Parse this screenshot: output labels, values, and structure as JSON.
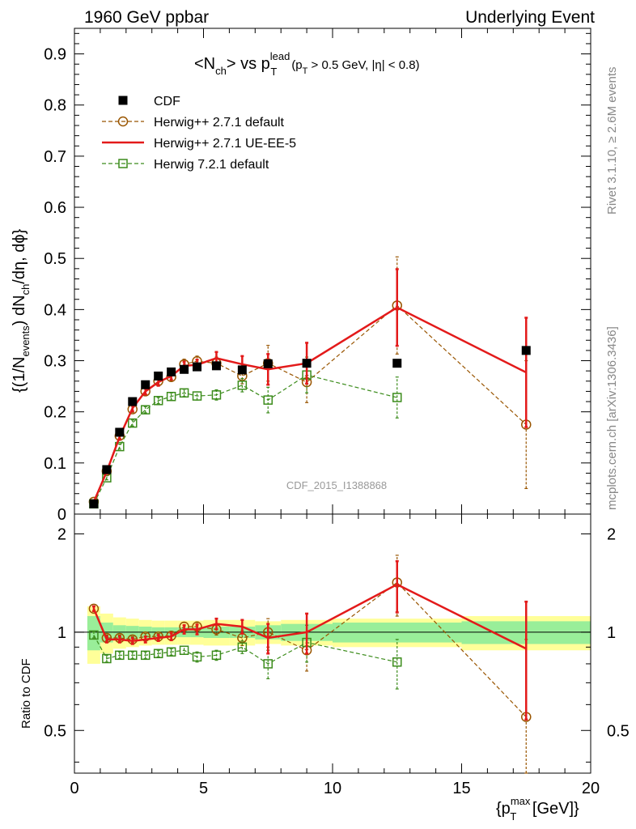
{
  "header": {
    "left": "1960 GeV ppbar",
    "right": "Underlying Event"
  },
  "side": {
    "rivet": "Rivet 3.1.10, ≥ 2.6M events",
    "mcplots": "mcplots.cern.ch [arXiv:1306.3436]"
  },
  "plot_title": {
    "main": "<N",
    "main_sub": "ch",
    "vs": "> vs p",
    "vs_sup": "lead",
    "vs_sub": "T",
    "cut_a": "(p",
    "cut_a_sub": "T",
    "cut_b": " > 0.5 GeV, |η| < 0.8)"
  },
  "watermark": "CDF_2015_I1388868",
  "ylabel_top": {
    "p1": "{(1/N",
    "p1_sub": "events",
    "p2": ") dN",
    "p2_sub": "ch",
    "p3": "/dη, dϕ}"
  },
  "ylabel_bottom": "Ratio to CDF",
  "xlabel": {
    "main": "{p",
    "sup": "max",
    "sub": "T",
    "tail": " [GeV]}"
  },
  "legend": [
    {
      "name": "CDF",
      "color": "#000000",
      "marker": "square-filled",
      "line": "none"
    },
    {
      "name": "Herwig++ 2.7.1 default",
      "color": "#995500",
      "marker": "circle-open",
      "line": "dashed"
    },
    {
      "name": "Herwig++ 2.7.1 UE-EE-5",
      "color": "#e31a1a",
      "marker": "none",
      "line": "solid"
    },
    {
      "name": "Herwig 7.2.1 default",
      "color": "#3c8c1c",
      "marker": "square-open",
      "line": "dashed"
    }
  ],
  "chart_data": {
    "type": "line",
    "title": "<Nch> vs pT lead (pT > 0.5 GeV, |η| < 0.8)",
    "xlabel": "{pT max [GeV]}",
    "ylabel": "{(1/Nevents) dNch/dη, dϕ}",
    "xlim": [
      0,
      20
    ],
    "ylim": [
      0,
      0.95
    ],
    "x_ticks": [
      0,
      5,
      10,
      15,
      20
    ],
    "y_ticks": [
      0,
      0.1,
      0.2,
      0.3,
      0.4,
      0.5,
      0.6,
      0.7,
      0.8,
      0.9
    ],
    "x_tick_labels": [
      "0",
      "5",
      "10",
      "15",
      "20"
    ],
    "y_tick_labels": [
      "0",
      "0.1",
      "0.2",
      "0.3",
      "0.4",
      "0.5",
      "0.6",
      "0.7",
      "0.8",
      "0.9"
    ],
    "ratio_ylim": [
      0.37,
      2.3
    ],
    "ratio_ticks": [
      0.5,
      1,
      2
    ],
    "ratio_tick_labels": [
      "0.5",
      "1",
      "2"
    ],
    "x": [
      0.75,
      1.25,
      1.75,
      2.25,
      2.75,
      3.25,
      3.75,
      4.25,
      4.75,
      5.5,
      6.5,
      7.5,
      9.0,
      12.5,
      17.5
    ],
    "x_bin_edges": [
      0.5,
      1.0,
      1.5,
      2.0,
      2.5,
      3.0,
      3.5,
      4.0,
      4.5,
      5.0,
      6.0,
      7.0,
      8.0,
      10.0,
      15.0,
      20.0
    ],
    "series": [
      {
        "name": "CDF",
        "values": [
          0.02,
          0.087,
          0.16,
          0.22,
          0.253,
          0.27,
          0.278,
          0.283,
          0.288,
          0.29,
          0.282,
          0.294,
          0.295,
          0.295,
          0.32
        ],
        "rel_stat_err": [
          0.12,
          0.07,
          0.05,
          0.045,
          0.04,
          0.035,
          0.035,
          0.035,
          0.035,
          0.04,
          0.04,
          0.05,
          0.06,
          0.07,
          0.08
        ],
        "rel_total_err": [
          0.2,
          0.14,
          0.11,
          0.1,
          0.09,
          0.085,
          0.085,
          0.085,
          0.085,
          0.09,
          0.09,
          0.08,
          0.09,
          0.1,
          0.12
        ]
      },
      {
        "name": "Herwig++ 2.7.1 default",
        "values": [
          0.024,
          0.084,
          0.153,
          0.205,
          0.24,
          0.26,
          0.268,
          0.293,
          0.299,
          0.295,
          0.27,
          0.295,
          0.258,
          0.408,
          0.175
        ],
        "errors": [
          0.003,
          0.004,
          0.005,
          0.006,
          0.006,
          0.007,
          0.007,
          0.01,
          0.01,
          0.012,
          0.015,
          0.035,
          0.04,
          0.095,
          0.125
        ],
        "ratio": [
          1.18,
          0.96,
          0.96,
          0.95,
          0.97,
          0.97,
          0.975,
          1.04,
          1.04,
          1.02,
          0.96,
          1.0,
          0.88,
          1.42,
          0.55
        ],
        "ratio_err": [
          0.02,
          0.02,
          0.02,
          0.02,
          0.02,
          0.02,
          0.025,
          0.03,
          0.035,
          0.04,
          0.05,
          0.1,
          0.12,
          0.3,
          0.4
        ]
      },
      {
        "name": "Herwig++ 2.7.1 UE-EE-5",
        "values": [
          0.024,
          0.083,
          0.151,
          0.207,
          0.24,
          0.258,
          0.27,
          0.29,
          0.292,
          0.305,
          0.293,
          0.283,
          0.295,
          0.404,
          0.277
        ],
        "errors": [
          0.003,
          0.004,
          0.005,
          0.006,
          0.006,
          0.007,
          0.007,
          0.008,
          0.01,
          0.012,
          0.016,
          0.03,
          0.04,
          0.075,
          0.107
        ],
        "ratio": [
          1.18,
          0.95,
          0.95,
          0.94,
          0.95,
          0.96,
          0.97,
          1.02,
          1.02,
          1.06,
          1.04,
          0.96,
          1.0,
          1.4,
          0.89
        ],
        "ratio_err": [
          0.02,
          0.02,
          0.02,
          0.02,
          0.02,
          0.02,
          0.025,
          0.03,
          0.035,
          0.04,
          0.05,
          0.1,
          0.14,
          0.25,
          0.35
        ]
      },
      {
        "name": "Herwig 7.2.1 default",
        "values": [
          0.02,
          0.071,
          0.132,
          0.178,
          0.204,
          0.222,
          0.23,
          0.237,
          0.231,
          0.233,
          0.252,
          0.223,
          0.272,
          0.228,
          null
        ],
        "errors": [
          0.003,
          0.004,
          0.005,
          0.006,
          0.006,
          0.006,
          0.007,
          0.007,
          0.008,
          0.01,
          0.013,
          0.025,
          0.035,
          0.04,
          null
        ],
        "ratio": [
          0.98,
          0.83,
          0.85,
          0.85,
          0.85,
          0.86,
          0.87,
          0.88,
          0.84,
          0.85,
          0.9,
          0.8,
          0.93,
          0.81,
          null
        ],
        "ratio_err": [
          0.02,
          0.02,
          0.02,
          0.02,
          0.02,
          0.02,
          0.02,
          0.025,
          0.03,
          0.03,
          0.04,
          0.08,
          0.12,
          0.14,
          null
        ]
      }
    ]
  }
}
